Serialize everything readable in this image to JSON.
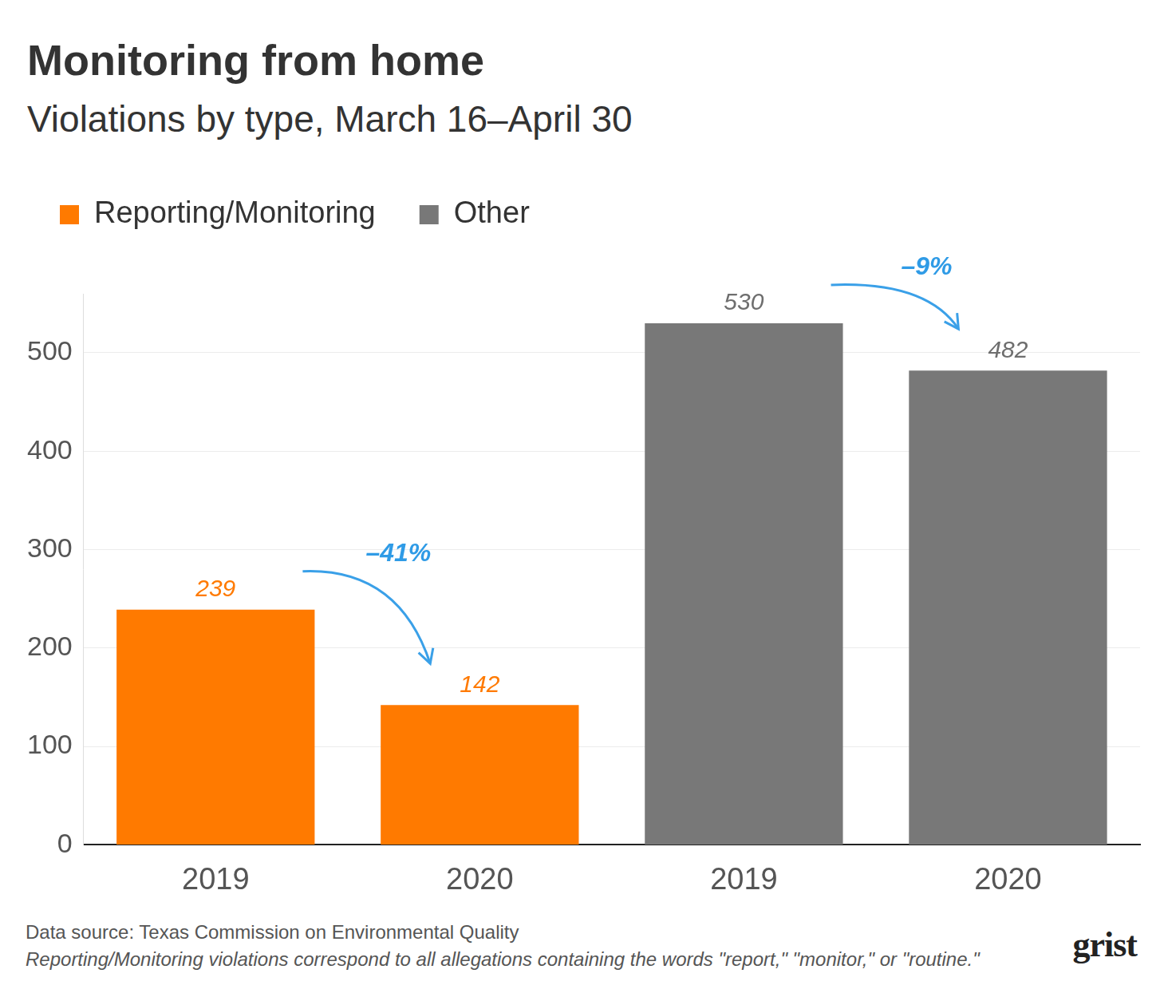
{
  "chart_data": {
    "type": "bar",
    "title": "Monitoring from home",
    "subtitle": "Violations by type, March 16–April 30",
    "categories": [
      "2019",
      "2020",
      "2019",
      "2020"
    ],
    "series": [
      {
        "name": "Reporting/Monitoring",
        "color": "#ff7a00",
        "values": [
          239,
          142,
          null,
          null
        ]
      },
      {
        "name": "Other",
        "color": "#787878",
        "values": [
          null,
          null,
          530,
          482
        ]
      }
    ],
    "ylim": [
      0,
      560
    ],
    "yticks": [
      0,
      100,
      200,
      300,
      400,
      500
    ],
    "grid": true,
    "legend": "top-left",
    "data_labels": true,
    "annotations": [
      "–41%",
      "–9%"
    ],
    "source": "Data source: Texas Commission on Environmental Quality",
    "note": "Reporting/Monitoring violations correspond to all allegations containing the words \"report,\" \"monitor,\" or \"routine.\"",
    "logo": "grist"
  }
}
